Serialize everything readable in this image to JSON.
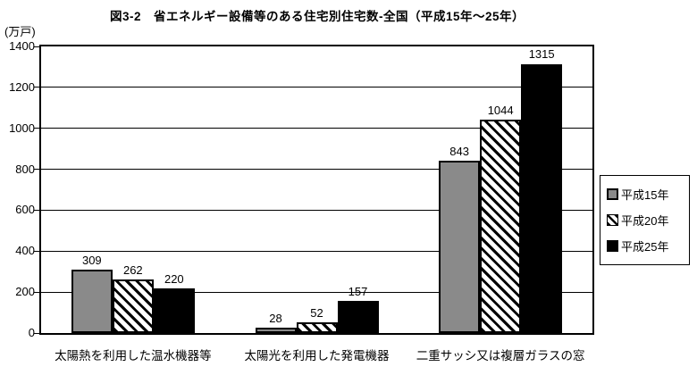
{
  "title": "図3-2　省エネルギー設備等のある住宅別住宅数-全国（平成15年～25年）",
  "colors": {
    "background": "#ffffff",
    "bar_heisei15": "#8a8a8a",
    "bar_heisei20_pattern": "black-diagonal-hatch-on-white",
    "bar_heisei25": "#000000",
    "axis_and_grid": "#000000"
  },
  "chart_data": {
    "type": "bar",
    "categories": [
      "太陽熱を利用した温水機器等",
      "太陽光を利用した発電機器",
      "二重サッシ又は複層ガラスの窓"
    ],
    "series": [
      {
        "name": "平成15年",
        "values": [
          309,
          28,
          843
        ],
        "style": "gray"
      },
      {
        "name": "平成20年",
        "values": [
          262,
          52,
          1044
        ],
        "style": "hatch"
      },
      {
        "name": "平成25年",
        "values": [
          220,
          157,
          1315
        ],
        "style": "black"
      }
    ],
    "title": "図3-2　省エネルギー設備等のある住宅別住宅数-全国（平成15年～25年）",
    "xlabel": "",
    "ylabel": "(万戸)",
    "ylim": [
      0,
      1400
    ],
    "yticks": [
      0,
      200,
      400,
      600,
      800,
      1000,
      1200,
      1400
    ],
    "grid": true,
    "data_labels": true,
    "legend_position": "right"
  }
}
